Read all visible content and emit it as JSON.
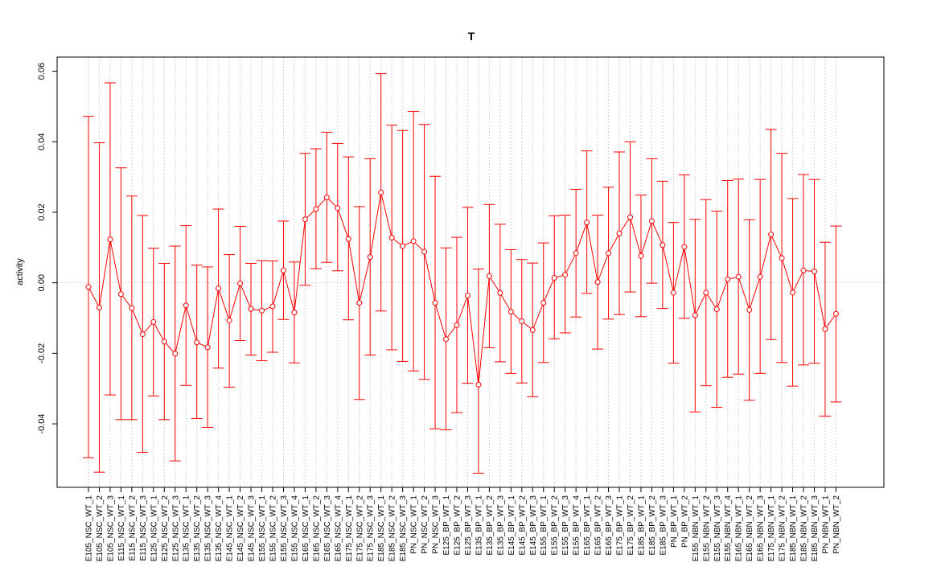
{
  "chart_data": {
    "type": "line",
    "title": "T",
    "xlabel": "",
    "ylabel": "activity",
    "ylim": [
      -0.058,
      0.064
    ],
    "yticks": [
      -0.04,
      -0.02,
      0.0,
      0.02,
      0.04,
      0.06
    ],
    "ytick_labels": [
      "-0.04",
      "-0.02",
      "0.00",
      "0.02",
      "0.04",
      "0.06"
    ],
    "grid": true,
    "color": "#ff0000",
    "categories": [
      "E105_NSC_WT_1",
      "E105_NSC_WT_2",
      "E105_NSC_WT_3",
      "E115_NSC_WT_1",
      "E115_NSC_WT_2",
      "E115_NSC_WT_3",
      "E125_NSC_WT_1",
      "E125_NSC_WT_2",
      "E125_NSC_WT_3",
      "E135_NSC_WT_1",
      "E135_NSC_WT_2",
      "E135_NSC_WT_3",
      "E135_NSC_WT_4",
      "E145_NSC_WT_1",
      "E145_NSC_WT_2",
      "E145_NSC_WT_3",
      "E155_NSC_WT_1",
      "E155_NSC_WT_2",
      "E155_NSC_WT_3",
      "E155_NSC_WT_4",
      "E165_NSC_WT_1",
      "E165_NSC_WT_2",
      "E165_NSC_WT_3",
      "E165_NSC_WT_4",
      "E175_NSC_WT_1",
      "E175_NSC_WT_2",
      "E175_NSC_WT_3",
      "E185_NSC_WT_1",
      "E185_NSC_WT_2",
      "E185_NSC_WT_3",
      "PN_NSC_WT_1",
      "PN_NSC_WT_2",
      "PN_NSC_WT_3",
      "E125_BP_WT_1",
      "E125_BP_WT_2",
      "E125_BP_WT_3",
      "E135_BP_WT_1",
      "E135_BP_WT_2",
      "E135_BP_WT_3",
      "E145_BP_WT_1",
      "E145_BP_WT_2",
      "E145_BP_WT_3",
      "E155_BP_WT_1",
      "E155_BP_WT_2",
      "E155_BP_WT_3",
      "E155_BP_WT_4",
      "E165_BP_WT_1",
      "E165_BP_WT_2",
      "E165_BP_WT_3",
      "E175_BP_WT_1",
      "E175_BP_WT_2",
      "E185_BP_WT_1",
      "E185_BP_WT_2",
      "E185_BP_WT_3",
      "PN_BP_WT_1",
      "PN_BP_WT_2",
      "E155_NBN_WT_1",
      "E155_NBN_WT_2",
      "E155_NBN_WT_3",
      "E155_NBN_WT_4",
      "E165_NBN_WT_1",
      "E165_NBN_WT_2",
      "E165_NBN_WT_3",
      "E175_NBN_WT_1",
      "E175_NBN_WT_2",
      "E185_NBN_WT_1",
      "E185_NBN_WT_2",
      "E185_NBN_WT_3",
      "PN_NBN_WT_1",
      "PN_NBN_WT_2"
    ],
    "values": [
      -0.0012,
      -0.007,
      0.0123,
      -0.0032,
      -0.0072,
      -0.0146,
      -0.0111,
      -0.0167,
      -0.0201,
      -0.0064,
      -0.0169,
      -0.0183,
      -0.0016,
      -0.0107,
      -0.0002,
      -0.0074,
      -0.0079,
      -0.0067,
      0.0035,
      -0.0084,
      0.018,
      0.0209,
      0.0242,
      0.0212,
      0.0124,
      -0.0057,
      0.0073,
      0.0256,
      0.0128,
      0.0104,
      0.0118,
      0.0088,
      -0.0057,
      -0.016,
      -0.012,
      -0.0036,
      -0.0289,
      0.0019,
      -0.0029,
      -0.0082,
      -0.0109,
      -0.0134,
      -0.0057,
      0.0014,
      0.0023,
      0.0084,
      0.0171,
      0.0002,
      0.0084,
      0.014,
      0.0186,
      0.0076,
      0.0175,
      0.0107,
      -0.0028,
      0.0102,
      -0.0092,
      -0.0028,
      -0.0075,
      0.001,
      0.0017,
      -0.0077,
      0.0017,
      0.0137,
      0.007,
      -0.0028,
      0.0035,
      0.0032,
      -0.0131,
      -0.0088
    ],
    "upper": [
      0.0472,
      0.0397,
      0.0567,
      0.0326,
      0.0246,
      0.0191,
      0.0098,
      0.0055,
      0.0104,
      0.0162,
      0.005,
      0.0045,
      0.0209,
      0.008,
      0.016,
      0.0055,
      0.0063,
      0.0062,
      0.0175,
      0.0059,
      0.0367,
      0.038,
      0.0427,
      0.0395,
      0.0357,
      0.0216,
      0.0352,
      0.0593,
      0.0447,
      0.0432,
      0.0486,
      0.0449,
      0.0302,
      0.0099,
      0.0129,
      0.0214,
      0.0039,
      0.0222,
      0.0166,
      0.0094,
      0.0066,
      0.0056,
      0.0113,
      0.019,
      0.0192,
      0.0265,
      0.0374,
      0.0192,
      0.0271,
      0.0371,
      0.04,
      0.0249,
      0.0352,
      0.0288,
      0.0171,
      0.0306,
      0.018,
      0.0236,
      0.0203,
      0.029,
      0.0294,
      0.0179,
      0.0293,
      0.0435,
      0.0367,
      0.0239,
      0.0307,
      0.0293,
      0.0115,
      0.0161
    ],
    "lower": [
      -0.0496,
      -0.0537,
      -0.0318,
      -0.0388,
      -0.0388,
      -0.0481,
      -0.0321,
      -0.0388,
      -0.0505,
      -0.0291,
      -0.0385,
      -0.041,
      -0.0242,
      -0.0296,
      -0.0164,
      -0.0205,
      -0.0221,
      -0.0197,
      -0.0104,
      -0.0227,
      -0.0007,
      0.004,
      0.0058,
      0.0034,
      -0.0105,
      -0.0331,
      -0.0205,
      -0.008,
      -0.019,
      -0.0223,
      -0.025,
      -0.0274,
      -0.0414,
      -0.0417,
      -0.0368,
      -0.0285,
      -0.054,
      -0.0184,
      -0.0224,
      -0.0257,
      -0.0284,
      -0.0323,
      -0.0226,
      -0.0159,
      -0.0142,
      -0.0097,
      -0.003,
      -0.0188,
      -0.0103,
      -0.009,
      -0.0026,
      -0.0096,
      -0.0001,
      -0.0073,
      -0.0228,
      -0.0101,
      -0.0366,
      -0.0292,
      -0.0353,
      -0.0268,
      -0.0259,
      -0.0333,
      -0.0257,
      -0.0161,
      -0.0226,
      -0.0293,
      -0.0233,
      -0.0228,
      -0.0378,
      -0.0338
    ]
  }
}
